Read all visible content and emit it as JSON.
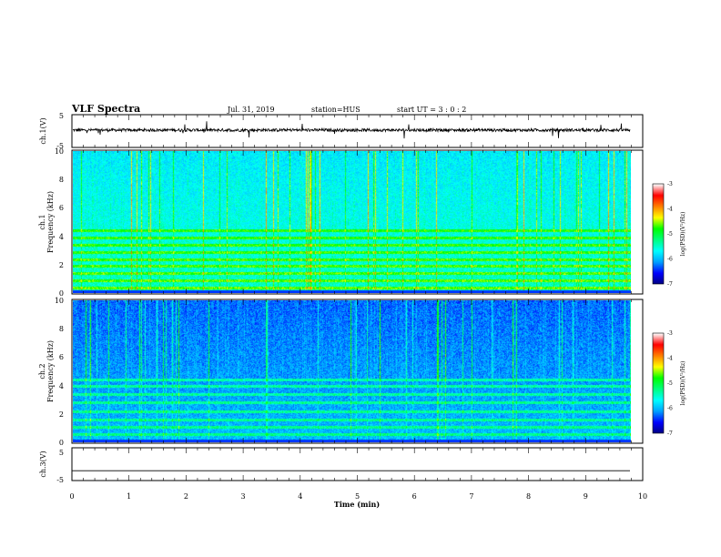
{
  "header": {
    "title": "VLF Spectra",
    "date": "Jul. 31, 2019",
    "station": "station=HUS",
    "start_ut": "start UT =  3 : 0  : 2"
  },
  "chart_data": [
    {
      "type": "line",
      "panel": "ch1-waveform",
      "ylabel": "ch.1(V)",
      "ylim": [
        -5,
        5
      ],
      "yticks": [
        "5",
        "-5"
      ],
      "xlim": [
        0,
        10
      ],
      "baseline": 0.3,
      "color": "#000000"
    },
    {
      "type": "heatmap",
      "panel": "ch1-spectrogram",
      "ylabel": "ch.1\nFrequency (kHz)",
      "ylim": [
        0,
        10
      ],
      "yticks": [
        "0",
        "2",
        "4",
        "6",
        "8",
        "10"
      ],
      "xlim": [
        0,
        9.8
      ],
      "bands_khz": [
        0.4,
        0.9,
        1.4,
        1.9,
        2.4,
        2.9,
        3.4,
        3.9,
        4.4
      ],
      "colorbar": {
        "label": "log(PSD)(V²/Hz)",
        "ticks": [
          "-3",
          "-4",
          "-5",
          "-6",
          "-7"
        ],
        "range": [
          -7,
          -3
        ]
      }
    },
    {
      "type": "heatmap",
      "panel": "ch2-spectrogram",
      "ylabel": "ch.2\nFrequency (kHz)",
      "ylim": [
        0,
        10
      ],
      "yticks": [
        "0",
        "2",
        "4",
        "6",
        "8",
        "10"
      ],
      "xlim": [
        0,
        9.8
      ],
      "bands_khz": [
        0.6,
        1.1,
        1.6,
        2.2,
        2.8,
        3.4,
        4.0,
        4.4
      ],
      "colorbar": {
        "label": "log(PSD)(V²/Hz)",
        "ticks": [
          "-3",
          "-4",
          "-5",
          "-6",
          "-7"
        ],
        "range": [
          -7,
          -3
        ]
      }
    },
    {
      "type": "line",
      "panel": "ch3-waveform",
      "ylabel": "ch.3(V)",
      "ylim": [
        -5,
        5
      ],
      "yticks": [
        "5",
        "-5"
      ],
      "xlim": [
        0,
        10
      ],
      "baseline": -2,
      "color": "#000000"
    }
  ],
  "xaxis": {
    "label": "Time (min)",
    "ticks": [
      "0",
      "1",
      "2",
      "3",
      "4",
      "5",
      "6",
      "7",
      "8",
      "9",
      "10"
    ]
  },
  "colors": {
    "colormap": [
      "#000080",
      "#0000ff",
      "#00a0ff",
      "#00ffff",
      "#00ff80",
      "#00ff00",
      "#ffff00",
      "#ff8000",
      "#ff0000",
      "#ffffff"
    ]
  }
}
